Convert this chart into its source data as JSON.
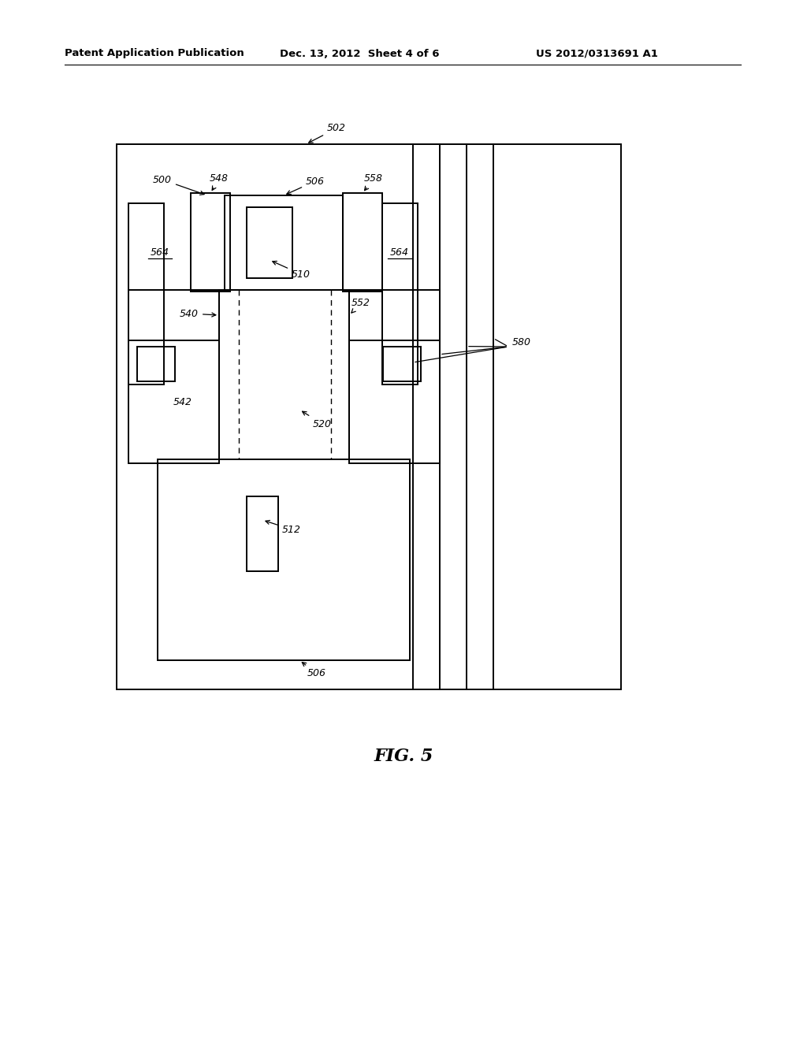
{
  "bg_color": "#ffffff",
  "line_color": "#000000",
  "header_text": "Patent Application Publication",
  "header_date": "Dec. 13, 2012  Sheet 4 of 6",
  "header_patent": "US 2012/0313691 A1",
  "fig_label": "FIG. 5"
}
